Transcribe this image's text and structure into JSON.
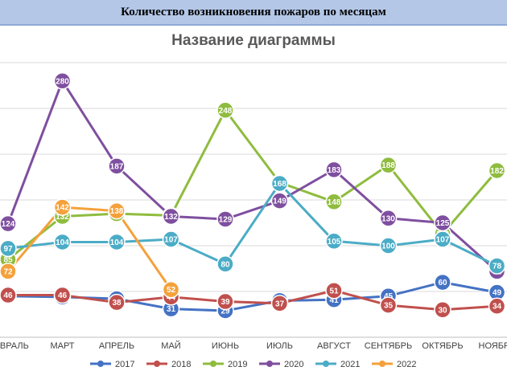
{
  "header": {
    "title": "Количество возникновения пожаров по месяцам"
  },
  "chart_data": {
    "type": "line",
    "title": "Название диаграммы",
    "xlabel": "",
    "ylabel": "",
    "ylim": [
      0,
      300
    ],
    "grid": true,
    "legend": "bottom",
    "categories": [
      "ФЕВРАЛЬ",
      "МАРТ",
      "АПРЕЛЬ",
      "МАЙ",
      "ИЮНЬ",
      "ИЮЛЬ",
      "АВГУСТ",
      "СЕНТЯБРЬ",
      "ОКТЯБРЬ",
      "НОЯБРЬ"
    ],
    "series": [
      {
        "name": "2017",
        "color": "#4472c4",
        "values": [
          45,
          44,
          42,
          31,
          29,
          40,
          41,
          45,
          60,
          49
        ]
      },
      {
        "name": "2018",
        "color": "#c0504d",
        "values": [
          46,
          46,
          38,
          44,
          39,
          37,
          51,
          35,
          30,
          34
        ]
      },
      {
        "name": "2019",
        "color": "#8fbc3f",
        "values": [
          85,
          132,
          135,
          133,
          248,
          169,
          148,
          188,
          113,
          182
        ]
      },
      {
        "name": "2020",
        "color": "#7f4f9f",
        "values": [
          124,
          280,
          187,
          132,
          129,
          149,
          183,
          130,
          125,
          72
        ]
      },
      {
        "name": "2021",
        "color": "#4bacc6",
        "values": [
          97,
          104,
          104,
          107,
          80,
          168,
          105,
          100,
          107,
          78
        ]
      },
      {
        "name": "2022",
        "color": "#f4a13b",
        "values": [
          72,
          142,
          138,
          52,
          null,
          null,
          null,
          null,
          null,
          null
        ]
      }
    ]
  }
}
